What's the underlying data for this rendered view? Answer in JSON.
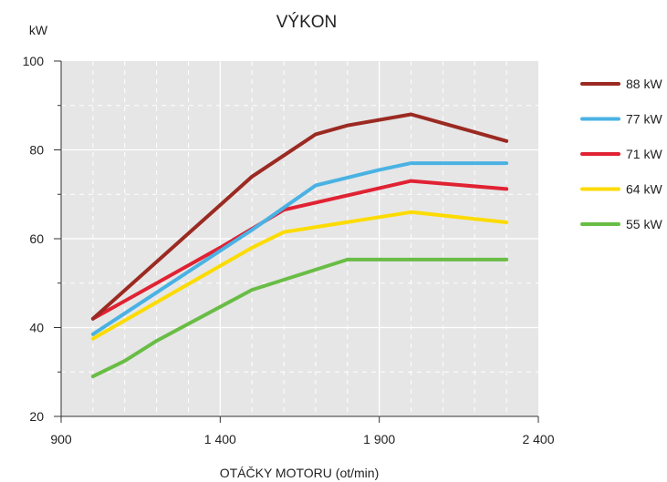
{
  "chart_data": {
    "type": "line",
    "title": "VÝKON",
    "ylabel": "kW",
    "xlabel": "OTÁČKY MOTORU (ot/min)",
    "xlim": [
      900,
      2400
    ],
    "ylim": [
      20,
      100
    ],
    "xticks": [
      900,
      1400,
      1900,
      2400
    ],
    "xtick_labels": [
      "900",
      "1 400",
      "1 900",
      "2 400"
    ],
    "yticks": [
      20,
      40,
      60,
      80,
      100
    ],
    "ytick_labels": [
      "20",
      "40",
      "60",
      "80",
      "100"
    ],
    "grid": true,
    "legend_position": "right",
    "series": [
      {
        "name": "88 kW",
        "color": "#9b2a22",
        "x": [
          1000,
          1500,
          1700,
          1800,
          2000,
          2300
        ],
        "y": [
          42,
          74,
          83.5,
          85.5,
          88,
          82
        ]
      },
      {
        "name": "77 kW",
        "color": "#4ab2e3",
        "x": [
          1000,
          1500,
          1700,
          1900,
          2000,
          2300
        ],
        "y": [
          38.5,
          62,
          72,
          75.5,
          77,
          77
        ]
      },
      {
        "name": "71 kW",
        "color": "#e02233",
        "x": [
          1000,
          1400,
          1600,
          2000,
          2300
        ],
        "y": [
          42,
          58,
          66.5,
          73,
          71.2
        ]
      },
      {
        "name": "64 kW",
        "color": "#fcdb00",
        "x": [
          1000,
          1500,
          1600,
          2000,
          2300
        ],
        "y": [
          37.5,
          58,
          61.5,
          66,
          63.7
        ]
      },
      {
        "name": "55 kW",
        "color": "#69bd45",
        "x": [
          1000,
          1100,
          1200,
          1500,
          1800,
          2300
        ],
        "y": [
          29,
          32.5,
          37,
          48.5,
          55.3,
          55.3
        ]
      }
    ]
  }
}
